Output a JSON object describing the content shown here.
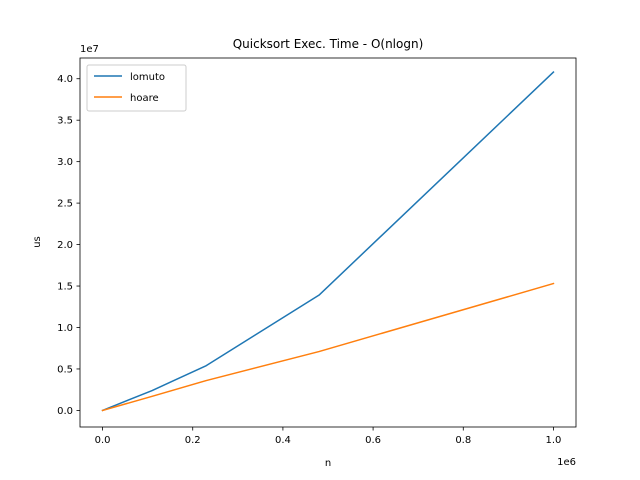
{
  "chart_data": {
    "type": "line",
    "title": "Quicksort Exec. Time - O(nlogn)",
    "xlabel": "n",
    "ylabel": "us",
    "x_offset_label": "1e6",
    "y_offset_label": "1e7",
    "xlim": [
      -0.05,
      1.05
    ],
    "ylim": [
      -0.2,
      4.25
    ],
    "xticks": [
      0.0,
      0.2,
      0.4,
      0.6,
      0.8,
      1.0
    ],
    "xtick_labels": [
      "0.0",
      "0.2",
      "0.4",
      "0.6",
      "0.8",
      "1.0"
    ],
    "yticks": [
      0.0,
      0.5,
      1.0,
      1.5,
      2.0,
      2.5,
      3.0,
      3.5,
      4.0
    ],
    "ytick_labels": [
      "0.0",
      "0.5",
      "1.0",
      "1.5",
      "2.0",
      "2.5",
      "3.0",
      "3.5",
      "4.0"
    ],
    "grid": false,
    "legend_position": "top-left",
    "series": [
      {
        "name": "lomuto",
        "color": "#1f77b4",
        "x": [
          0,
          0.11,
          0.23,
          0.48,
          1.0
        ],
        "y": [
          0,
          0.24,
          0.54,
          1.39,
          4.08
        ]
      },
      {
        "name": "hoare",
        "color": "#ff7f0e",
        "x": [
          0,
          0.11,
          0.23,
          0.48,
          1.0
        ],
        "y": [
          0,
          0.17,
          0.36,
          0.71,
          1.53
        ]
      }
    ]
  }
}
